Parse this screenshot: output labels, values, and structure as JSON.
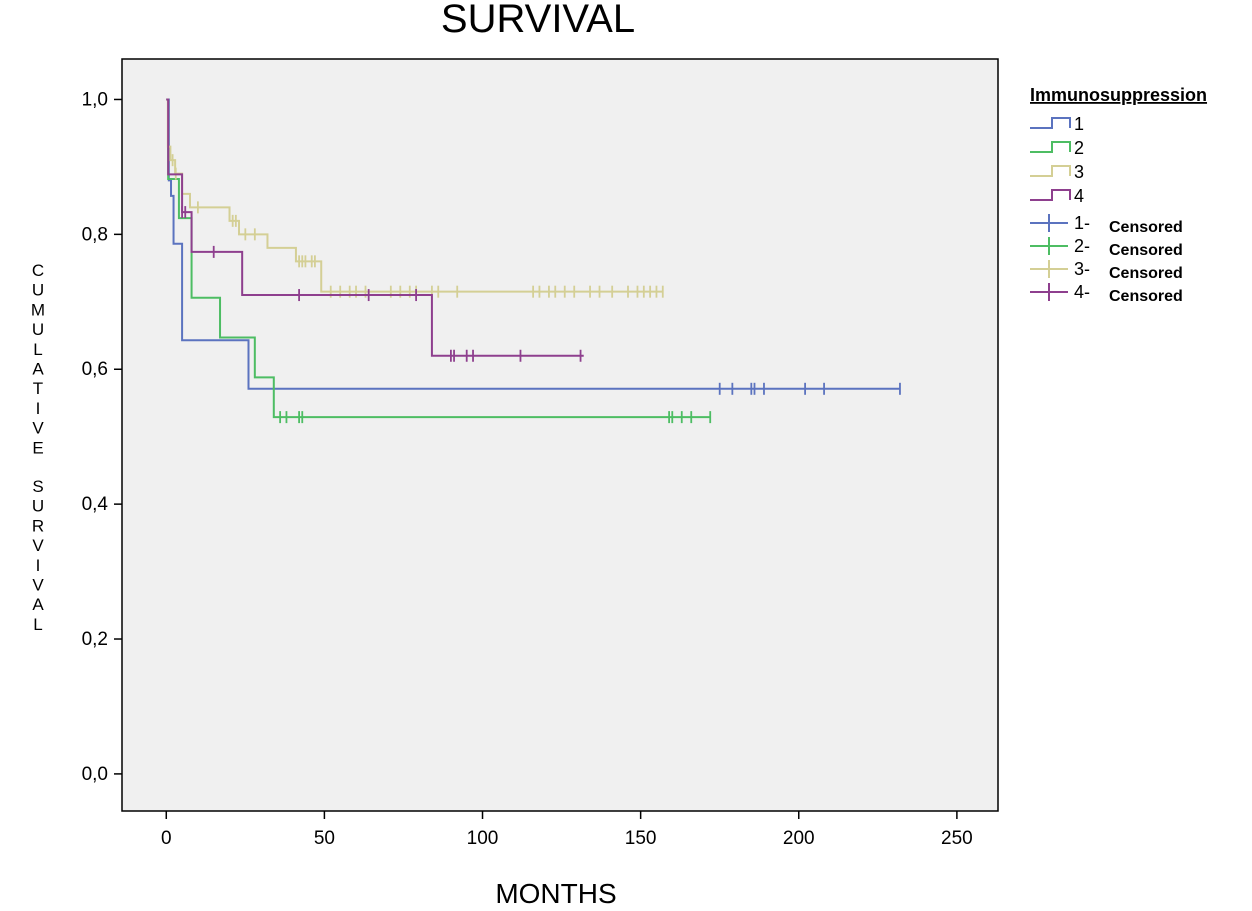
{
  "chart_data": {
    "type": "line",
    "step": true,
    "title": "SURVIVAL",
    "xlabel": "MONTHS",
    "ylabel": "CUMULATIVE SURVIVAL",
    "xlim": [
      -14,
      263
    ],
    "ylim": [
      -0.055,
      1.06
    ],
    "x_ticks": [
      0,
      50,
      100,
      150,
      200,
      250
    ],
    "x_tick_labels": [
      "0",
      "50",
      "100",
      "150",
      "200",
      "250"
    ],
    "y_ticks": [
      0,
      0.2,
      0.4,
      0.6,
      0.8,
      1.0
    ],
    "y_tick_labels": [
      "0,0",
      "0,2",
      "0,4",
      "0,6",
      "0,8",
      "1,0"
    ],
    "grid": false,
    "plot_background": "#f0f0f0",
    "legend": {
      "title": "Immunosuppression",
      "placement": "right",
      "line_entries": [
        "1",
        "2",
        "3",
        "4"
      ],
      "censored_entries": [
        {
          "id": "1-",
          "text": "Censored"
        },
        {
          "id": "2-",
          "text": "Censored"
        },
        {
          "id": "3-",
          "text": "Censored"
        },
        {
          "id": "4-",
          "text": "Censored"
        }
      ]
    },
    "series": [
      {
        "name": "1",
        "color": "#5b73bf",
        "steps": [
          [
            0,
            1.0
          ],
          [
            0.8,
            0.88
          ],
          [
            1.5,
            0.857
          ],
          [
            2.3,
            0.786
          ],
          [
            5,
            0.643
          ],
          [
            26,
            0.571
          ],
          [
            232,
            0.571
          ]
        ],
        "censored": [
          175,
          179,
          185,
          186,
          189,
          202,
          208,
          232
        ]
      },
      {
        "name": "2",
        "color": "#4dbd63",
        "steps": [
          [
            0,
            1.0
          ],
          [
            0.6,
            0.882
          ],
          [
            4,
            0.824
          ],
          [
            8,
            0.706
          ],
          [
            17,
            0.647
          ],
          [
            28,
            0.588
          ],
          [
            34,
            0.529
          ],
          [
            172,
            0.529
          ]
        ],
        "censored": [
          36,
          38,
          42,
          43,
          159,
          160,
          163,
          166,
          172
        ]
      },
      {
        "name": "3",
        "color": "#d4cf95",
        "steps": [
          [
            0,
            1.0
          ],
          [
            0.5,
            0.93
          ],
          [
            1.3,
            0.91
          ],
          [
            2.8,
            0.89
          ],
          [
            5,
            0.86
          ],
          [
            7.5,
            0.84
          ],
          [
            20,
            0.82
          ],
          [
            23,
            0.8
          ],
          [
            32,
            0.78
          ],
          [
            41,
            0.76
          ],
          [
            49,
            0.715
          ],
          [
            157,
            0.715
          ]
        ],
        "censored": [
          2,
          3,
          10,
          21,
          22,
          25,
          28,
          42,
          43,
          44,
          46,
          47,
          52,
          55,
          58,
          60,
          63,
          71,
          74,
          77,
          79,
          84,
          86,
          92,
          116,
          118,
          121,
          123,
          126,
          129,
          134,
          137,
          141,
          146,
          149,
          151,
          153,
          155,
          157
        ]
      },
      {
        "name": "4",
        "color": "#8e3f8e",
        "steps": [
          [
            0,
            1.0
          ],
          [
            0.6,
            0.889
          ],
          [
            5,
            0.833
          ],
          [
            8,
            0.774
          ],
          [
            24,
            0.71
          ],
          [
            84,
            0.62
          ],
          [
            132,
            0.62
          ]
        ],
        "censored": [
          5,
          6,
          15,
          42,
          64,
          79,
          90,
          91,
          95,
          97,
          112,
          131
        ]
      }
    ]
  }
}
